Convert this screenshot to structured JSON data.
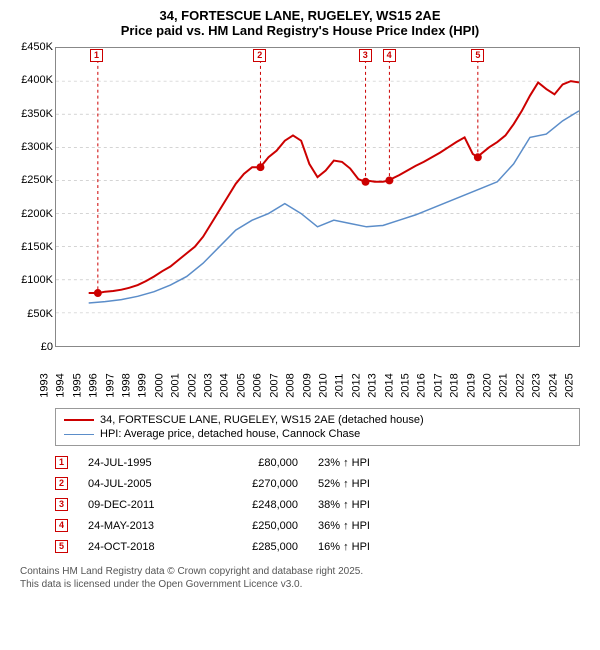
{
  "title": {
    "line1": "34, FORTESCUE LANE, RUGELEY, WS15 2AE",
    "line2": "Price paid vs. HM Land Registry's House Price Index (HPI)"
  },
  "chart": {
    "type": "line",
    "background_color": "#ffffff",
    "grid_color": "#bbbbbb",
    "y": {
      "min": 0,
      "max": 450000,
      "step": 50000,
      "labels": [
        "£0",
        "£50K",
        "£100K",
        "£150K",
        "£200K",
        "£250K",
        "£300K",
        "£350K",
        "£400K",
        "£450K"
      ],
      "label_fontsize": 11
    },
    "x": {
      "min": 1993,
      "max": 2025,
      "labels": [
        "1993",
        "1994",
        "1995",
        "1996",
        "1997",
        "1998",
        "1999",
        "2000",
        "2001",
        "2002",
        "2003",
        "2004",
        "2005",
        "2006",
        "2007",
        "2008",
        "2009",
        "2010",
        "2011",
        "2012",
        "2013",
        "2014",
        "2015",
        "2016",
        "2017",
        "2018",
        "2019",
        "2020",
        "2021",
        "2022",
        "2023",
        "2024",
        "2025"
      ],
      "label_fontsize": 11
    },
    "series": [
      {
        "name": "34, FORTESCUE LANE, RUGELEY, WS15 2AE (detached house)",
        "color": "#cc0000",
        "line_width": 2,
        "points": [
          [
            1995.0,
            80000
          ],
          [
            1995.6,
            80000
          ],
          [
            1996,
            82000
          ],
          [
            1996.5,
            83000
          ],
          [
            1997,
            85000
          ],
          [
            1997.5,
            88000
          ],
          [
            1998,
            92000
          ],
          [
            1998.5,
            98000
          ],
          [
            1999,
            105000
          ],
          [
            1999.5,
            113000
          ],
          [
            2000,
            120000
          ],
          [
            2000.5,
            130000
          ],
          [
            2001,
            140000
          ],
          [
            2001.5,
            150000
          ],
          [
            2002,
            165000
          ],
          [
            2002.5,
            185000
          ],
          [
            2003,
            205000
          ],
          [
            2003.5,
            225000
          ],
          [
            2004,
            245000
          ],
          [
            2004.5,
            260000
          ],
          [
            2005,
            270000
          ],
          [
            2005.5,
            270000
          ],
          [
            2006,
            285000
          ],
          [
            2006.5,
            295000
          ],
          [
            2007,
            310000
          ],
          [
            2007.5,
            318000
          ],
          [
            2008,
            310000
          ],
          [
            2008.5,
            275000
          ],
          [
            2009,
            255000
          ],
          [
            2009.5,
            265000
          ],
          [
            2010,
            280000
          ],
          [
            2010.5,
            278000
          ],
          [
            2011,
            268000
          ],
          [
            2011.5,
            252000
          ],
          [
            2011.94,
            248000
          ],
          [
            2012,
            250000
          ],
          [
            2012.5,
            248000
          ],
          [
            2013,
            248000
          ],
          [
            2013.4,
            250000
          ],
          [
            2013.5,
            252000
          ],
          [
            2014,
            258000
          ],
          [
            2014.5,
            265000
          ],
          [
            2015,
            272000
          ],
          [
            2015.5,
            278000
          ],
          [
            2016,
            285000
          ],
          [
            2016.5,
            292000
          ],
          [
            2017,
            300000
          ],
          [
            2017.5,
            308000
          ],
          [
            2018,
            315000
          ],
          [
            2018.5,
            290000
          ],
          [
            2018.81,
            285000
          ],
          [
            2019,
            290000
          ],
          [
            2019.5,
            300000
          ],
          [
            2020,
            308000
          ],
          [
            2020.5,
            318000
          ],
          [
            2021,
            335000
          ],
          [
            2021.5,
            355000
          ],
          [
            2022,
            378000
          ],
          [
            2022.5,
            398000
          ],
          [
            2023,
            388000
          ],
          [
            2023.5,
            380000
          ],
          [
            2024,
            395000
          ],
          [
            2024.5,
            400000
          ],
          [
            2025,
            398000
          ]
        ]
      },
      {
        "name": "HPI: Average price, detached house, Cannock Chase",
        "color": "#5b8dc9",
        "line_width": 1.5,
        "points": [
          [
            1995.0,
            65000
          ],
          [
            1996,
            67000
          ],
          [
            1997,
            70000
          ],
          [
            1998,
            75000
          ],
          [
            1999,
            82000
          ],
          [
            2000,
            92000
          ],
          [
            2001,
            105000
          ],
          [
            2002,
            125000
          ],
          [
            2003,
            150000
          ],
          [
            2004,
            175000
          ],
          [
            2005,
            190000
          ],
          [
            2006,
            200000
          ],
          [
            2007,
            215000
          ],
          [
            2008,
            200000
          ],
          [
            2009,
            180000
          ],
          [
            2010,
            190000
          ],
          [
            2011,
            185000
          ],
          [
            2012,
            180000
          ],
          [
            2013,
            182000
          ],
          [
            2014,
            190000
          ],
          [
            2015,
            198000
          ],
          [
            2016,
            208000
          ],
          [
            2017,
            218000
          ],
          [
            2018,
            228000
          ],
          [
            2019,
            238000
          ],
          [
            2020,
            248000
          ],
          [
            2021,
            275000
          ],
          [
            2022,
            315000
          ],
          [
            2023,
            320000
          ],
          [
            2024,
            340000
          ],
          [
            2025,
            355000
          ]
        ]
      }
    ],
    "markers": [
      {
        "n": "1",
        "year": 1995.56,
        "price": 80000,
        "date": "24-JUL-1995",
        "price_label": "£80,000",
        "pct": "23% ↑ HPI"
      },
      {
        "n": "2",
        "year": 2005.51,
        "price": 270000,
        "date": "04-JUL-2005",
        "price_label": "£270,000",
        "pct": "52% ↑ HPI"
      },
      {
        "n": "3",
        "year": 2011.94,
        "price": 248000,
        "date": "09-DEC-2011",
        "price_label": "£248,000",
        "pct": "38% ↑ HPI"
      },
      {
        "n": "4",
        "year": 2013.4,
        "price": 250000,
        "date": "24-MAY-2013",
        "price_label": "£250,000",
        "pct": "36% ↑ HPI"
      },
      {
        "n": "5",
        "year": 2018.81,
        "price": 285000,
        "date": "24-OCT-2018",
        "price_label": "£285,000",
        "pct": "16% ↑ HPI"
      }
    ]
  },
  "legend": {
    "items": [
      {
        "color": "#cc0000",
        "width": 2,
        "label": "34, FORTESCUE LANE, RUGELEY, WS15 2AE (detached house)"
      },
      {
        "color": "#5b8dc9",
        "width": 1.5,
        "label": "HPI: Average price, detached house, Cannock Chase"
      }
    ]
  },
  "footer": {
    "line1": "Contains HM Land Registry data © Crown copyright and database right 2025.",
    "line2": "This data is licensed under the Open Government Licence v3.0."
  }
}
